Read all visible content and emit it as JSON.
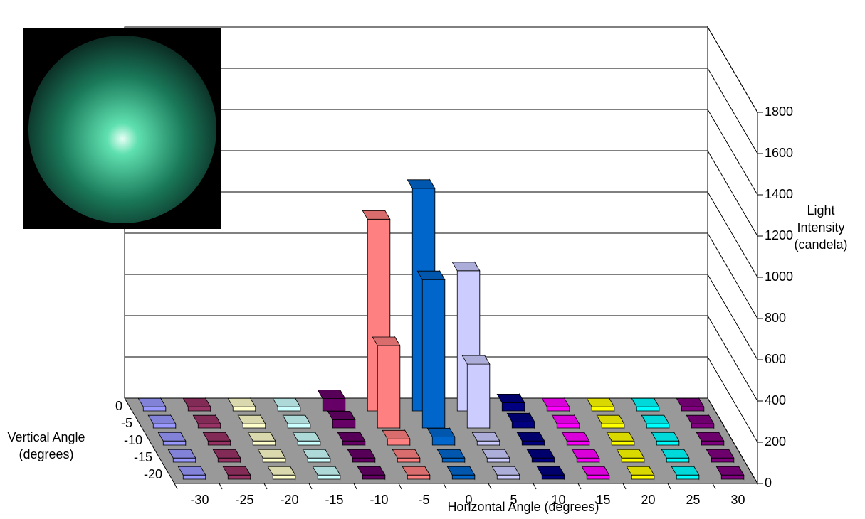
{
  "chart_data": {
    "type": "bar3d",
    "x_label": "Horizontal Angle (degrees)",
    "z_label": "Vertical Angle (degrees)",
    "y_label": "Light Intensity (candela)",
    "categories": [
      "0",
      "-5",
      "-10",
      "-15",
      "-20"
    ],
    "series": [
      {
        "name": "-30",
        "color": "#9999ff",
        "values": [
          20,
          20,
          20,
          20,
          20
        ]
      },
      {
        "name": "-25",
        "color": "#993366",
        "values": [
          20,
          20,
          20,
          20,
          20
        ]
      },
      {
        "name": "-20",
        "color": "#ffffcc",
        "values": [
          20,
          20,
          20,
          20,
          20
        ]
      },
      {
        "name": "-15",
        "color": "#ccffff",
        "values": [
          20,
          20,
          20,
          20,
          20
        ]
      },
      {
        "name": "-10",
        "color": "#660066",
        "values": [
          60,
          40,
          20,
          20,
          20
        ]
      },
      {
        "name": "-5",
        "color": "#ff8080",
        "values": [
          930,
          400,
          30,
          20,
          20
        ]
      },
      {
        "name": "0",
        "color": "#0066cc",
        "values": [
          1080,
          720,
          40,
          20,
          20
        ]
      },
      {
        "name": "5",
        "color": "#ccccff",
        "values": [
          680,
          310,
          20,
          20,
          20
        ]
      },
      {
        "name": "10",
        "color": "#000080",
        "values": [
          40,
          30,
          20,
          20,
          20
        ]
      },
      {
        "name": "15",
        "color": "#ff00ff",
        "values": [
          20,
          20,
          20,
          20,
          20
        ]
      },
      {
        "name": "20",
        "color": "#ffff00",
        "values": [
          20,
          20,
          20,
          20,
          20
        ]
      },
      {
        "name": "25",
        "color": "#00ffff",
        "values": [
          20,
          20,
          20,
          20,
          20
        ]
      },
      {
        "name": "30",
        "color": "#800080",
        "values": [
          20,
          20,
          20,
          20,
          20
        ]
      }
    ],
    "ylim": [
      0,
      1800
    ],
    "yticks": [
      0,
      200,
      400,
      600,
      800,
      1000,
      1200,
      1400,
      1600,
      1800
    ],
    "grid": true
  }
}
